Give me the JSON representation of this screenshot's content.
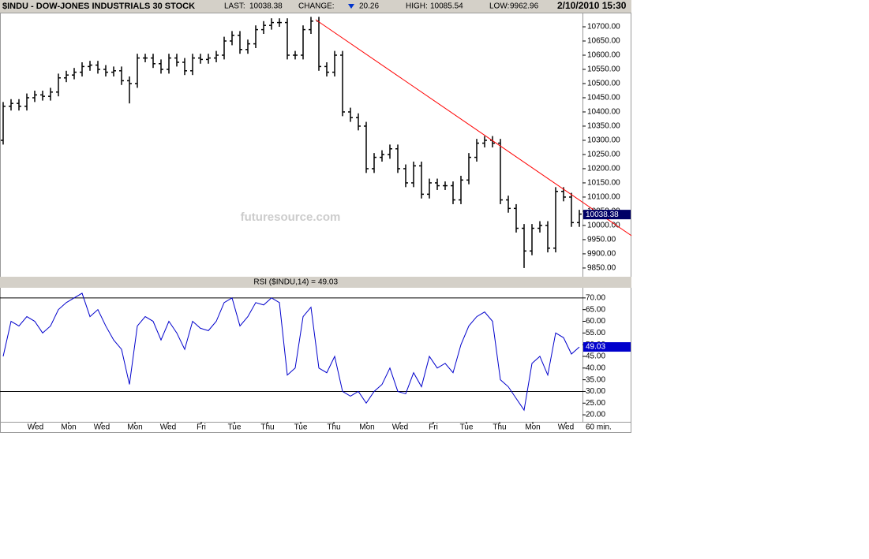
{
  "chart_data": {
    "type": "ohlc",
    "title": "$INDU - DOW-JONES INDUSTRIALS 30 STOCK",
    "stats": [
      {
        "label": "LAST:",
        "value": 10038.38
      },
      {
        "label": "CHANGE:",
        "value": 20.26
      },
      {
        "label": "HIGH:",
        "value": 10085.54
      },
      {
        "label": "LOW:",
        "value": 9962.96
      }
    ],
    "date": "2/10/2010 15:30",
    "color": "#000000",
    "last_box_color": "#000066",
    "watermark": "futuresource.com",
    "open": [
      10300,
      10420,
      10430,
      10420,
      10450,
      10460,
      10455,
      10470,
      10520,
      10530,
      10540,
      10560,
      10565,
      10550,
      10540,
      10545,
      10510,
      10500,
      10590,
      10590,
      10570,
      10550,
      10590,
      10575,
      10545,
      10590,
      10585,
      10590,
      10600,
      10650,
      10670,
      10620,
      10640,
      10690,
      10705,
      10715,
      10715,
      10600,
      10600,
      10690,
      10720,
      10560,
      10540,
      10600,
      10400,
      10380,
      10350,
      10200,
      10240,
      10250,
      10270,
      10200,
      10150,
      10210,
      10110,
      10150,
      10140,
      10140,
      10090,
      10160,
      10240,
      10290,
      10300,
      10290,
      10090,
      10060,
      9990,
      9910,
      9990,
      10000,
      9920,
      10120,
      10100,
      10010
    ],
    "high": [
      10435,
      10445,
      10445,
      10465,
      10475,
      10475,
      10485,
      10535,
      10545,
      10555,
      10575,
      10580,
      10580,
      10565,
      10560,
      10560,
      10525,
      10605,
      10605,
      10605,
      10585,
      10605,
      10605,
      10590,
      10605,
      10605,
      10605,
      10615,
      10665,
      10685,
      10685,
      10655,
      10705,
      10720,
      10730,
      10730,
      10730,
      10615,
      10705,
      10735,
      10735,
      10575,
      10615,
      10615,
      10415,
      10395,
      10365,
      10255,
      10265,
      10285,
      10285,
      10215,
      10225,
      10225,
      10165,
      10165,
      10155,
      10155,
      10175,
      10255,
      10305,
      10315,
      10315,
      10305,
      10105,
      10075,
      10005,
      10005,
      10015,
      10015,
      10135,
      10135,
      10115,
      10055
    ],
    "low": [
      10285,
      10405,
      10405,
      10405,
      10435,
      10440,
      10440,
      10455,
      10505,
      10515,
      10525,
      10545,
      10535,
      10525,
      10525,
      10495,
      10430,
      10485,
      10575,
      10555,
      10535,
      10535,
      10560,
      10530,
      10530,
      10570,
      10570,
      10575,
      10585,
      10635,
      10605,
      10605,
      10625,
      10675,
      10690,
      10700,
      10585,
      10585,
      10585,
      10675,
      10545,
      10525,
      10525,
      10385,
      10365,
      10335,
      10185,
      10185,
      10225,
      10235,
      10185,
      10135,
      10135,
      10095,
      10095,
      10125,
      10125,
      10075,
      10075,
      10145,
      10225,
      10275,
      10275,
      10075,
      10045,
      9975,
      9850,
      9895,
      9975,
      9905,
      9905,
      10085,
      9995,
      9995
    ],
    "close": [
      10420,
      10430,
      10420,
      10450,
      10460,
      10455,
      10470,
      10520,
      10530,
      10540,
      10560,
      10565,
      10550,
      10540,
      10545,
      10510,
      10500,
      10590,
      10590,
      10570,
      10550,
      10590,
      10575,
      10545,
      10590,
      10585,
      10590,
      10600,
      10650,
      10670,
      10620,
      10640,
      10690,
      10705,
      10715,
      10715,
      10600,
      10600,
      10690,
      10720,
      10560,
      10540,
      10600,
      10400,
      10380,
      10350,
      10200,
      10240,
      10250,
      10270,
      10200,
      10150,
      10210,
      10110,
      10150,
      10140,
      10140,
      10090,
      10160,
      10240,
      10290,
      10300,
      10290,
      10090,
      10060,
      9990,
      9910,
      9990,
      10000,
      9920,
      10120,
      10100,
      10010,
      10040
    ],
    "ylim": [
      9822,
      10750
    ],
    "yticks": [
      {
        "value": 9850,
        "label": "9850.00"
      },
      {
        "value": 9900,
        "label": "9900.00"
      },
      {
        "value": 9950,
        "label": "9950.00"
      },
      {
        "value": 10000,
        "label": "10000.00"
      },
      {
        "value": 10050,
        "label": "10050.00"
      },
      {
        "value": 10100,
        "label": "10100.00"
      },
      {
        "value": 10150,
        "label": "10150.00"
      },
      {
        "value": 10200,
        "label": "10200.00"
      },
      {
        "value": 10250,
        "label": "10250.00"
      },
      {
        "value": 10300,
        "label": "10300.00"
      },
      {
        "value": 10350,
        "label": "10350.00"
      },
      {
        "value": 10400,
        "label": "10400.00"
      },
      {
        "value": 10450,
        "label": "10450.00"
      },
      {
        "value": 10500,
        "label": "10500.00"
      },
      {
        "value": 10550,
        "label": "10550.00"
      },
      {
        "value": 10600,
        "label": "10600.00"
      },
      {
        "value": 10650,
        "label": "10650.00"
      },
      {
        "value": 10700,
        "label": "10700.00"
      }
    ],
    "trendline": {
      "color": "#ff0000",
      "from": [
        39.6,
        10725
      ],
      "to": [
        79.6,
        9964
      ]
    },
    "rsi": {
      "label": "RSI ($INDU,14) =",
      "value": 49.03,
      "color": "#0000cc",
      "values": [
        45,
        60,
        58,
        62,
        60,
        55,
        58,
        65,
        68,
        70,
        72,
        62,
        65,
        58,
        52,
        48,
        33,
        58,
        62,
        60,
        52,
        60,
        55,
        48,
        60,
        57,
        56,
        60,
        68,
        70,
        58,
        62,
        68,
        67,
        70,
        68,
        37,
        40,
        62,
        66,
        40,
        38,
        45,
        30,
        28,
        30,
        25,
        30,
        33,
        40,
        30,
        29,
        38,
        32,
        45,
        40,
        42,
        38,
        50,
        58,
        62,
        64,
        60,
        35,
        32,
        27,
        22,
        42,
        45,
        37,
        55,
        53,
        46,
        49
      ],
      "ylim": [
        17,
        74
      ],
      "yticks": [
        {
          "value": 20,
          "label": "20.00"
        },
        {
          "value": 25,
          "label": "25.00"
        },
        {
          "value": 30,
          "label": "30.00"
        },
        {
          "value": 35,
          "label": "35.00"
        },
        {
          "value": 40,
          "label": "40.00"
        },
        {
          "value": 45,
          "label": "45.00"
        },
        {
          "value": 50,
          "label": "50.00"
        },
        {
          "value": 55,
          "label": "55.00"
        },
        {
          "value": 60,
          "label": "60.00"
        },
        {
          "value": 65,
          "label": "65.00"
        },
        {
          "value": 70,
          "label": "70.00"
        }
      ],
      "levels": [
        70,
        30
      ]
    },
    "x_labels": [
      "Wed",
      "Mon",
      "Wed",
      "Mon",
      "Wed",
      "Fri",
      "Tue",
      "Thu",
      "Tue",
      "Thu",
      "Mon",
      "Wed",
      "Fri",
      "Tue",
      "Thu",
      "Mon",
      "Wed"
    ],
    "interval": "60 min."
  }
}
